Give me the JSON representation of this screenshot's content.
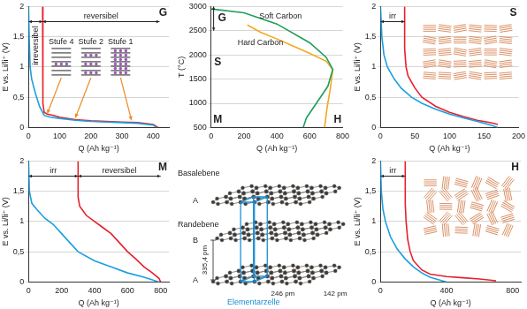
{
  "chart_data": [
    {
      "type": "line",
      "label": "G",
      "x_label": "Q (Ah kg⁻¹)",
      "y_label": "E vs. Li/li⁺ (V)",
      "xlim": [
        0,
        450
      ],
      "xticks": [
        0,
        100,
        200,
        300,
        400
      ],
      "ylim": [
        0,
        2
      ],
      "yticks": [
        0,
        {
          "value": 0.5,
          "label": "0,5"
        },
        1,
        {
          "value": 1.5,
          "label": "1,5"
        },
        2
      ],
      "grid": true,
      "series": [
        {
          "color": "#1a9fe0",
          "x": [
            0,
            2,
            5,
            10,
            20,
            35,
            50,
            70,
            100,
            150,
            200,
            250,
            300,
            350,
            400,
            410
          ],
          "values": [
            2.0,
            1.5,
            1.0,
            0.8,
            0.6,
            0.35,
            0.2,
            0.17,
            0.15,
            0.12,
            0.1,
            0.09,
            0.08,
            0.07,
            0.04,
            0.0
          ]
        },
        {
          "color": "#e8202a",
          "x": [
            45,
            45,
            47,
            50,
            60,
            80,
            100,
            150,
            200,
            250,
            300,
            350,
            400,
            415
          ],
          "values": [
            2.0,
            1.0,
            0.4,
            0.25,
            0.22,
            0.2,
            0.17,
            0.13,
            0.11,
            0.1,
            0.09,
            0.08,
            0.05,
            0.0
          ]
        }
      ],
      "annotations": [
        {
          "text": "irreversibel",
          "x": [
            0,
            45
          ],
          "y": 1.75
        },
        {
          "text": "reversibel",
          "x": [
            45,
            420
          ],
          "y": 1.75
        },
        {
          "text": "Stufe 4",
          "x": 105,
          "y": 1.35,
          "to": [
            60,
            0.2
          ]
        },
        {
          "text": "Stufe 2",
          "x": 200,
          "y": 1.35,
          "to": [
            150,
            0.13
          ]
        },
        {
          "text": "Stufe 1",
          "x": 295,
          "y": 1.35,
          "to": [
            330,
            0.09
          ]
        }
      ]
    },
    {
      "type": "line",
      "x_label": "Q (Ah kg⁻¹)",
      "y_label": "T (°C)",
      "xlim": [
        0,
        800
      ],
      "xticks": [
        0,
        200,
        400,
        600,
        800
      ],
      "ylim": [
        500,
        3000
      ],
      "yticks": [
        500,
        1000,
        1500,
        2000,
        2500,
        3000
      ],
      "grid": true,
      "series": [
        {
          "name": "Soft Carbon",
          "color": "#1f9e58",
          "x": [
            0,
            200,
            400,
            600,
            700,
            740,
            710,
            640,
            580,
            560
          ],
          "values": [
            2950,
            2870,
            2640,
            2250,
            1950,
            1700,
            1350,
            1000,
            700,
            500
          ]
        },
        {
          "name": "Hard Carbon",
          "color": "#f2a81d",
          "x": [
            220,
            300,
            400,
            500,
            600,
            700,
            740,
            725,
            705,
            690
          ],
          "values": [
            2620,
            2470,
            2330,
            2180,
            2030,
            1870,
            1700,
            1300,
            900,
            500
          ]
        }
      ],
      "annotations": [
        {
          "text": "G",
          "x": 15,
          "y": [
            2500,
            3000
          ]
        },
        {
          "text": "S",
          "x": 40,
          "y": 1850
        },
        {
          "text": "M",
          "x": 40,
          "y": 650
        },
        {
          "text": "H",
          "x": 770,
          "y": 650
        }
      ]
    },
    {
      "type": "line",
      "label": "S",
      "x_label": "Q (Ah kg⁻¹)",
      "y_label": "E vs. Li/li⁺ (V)",
      "xlim": [
        0,
        200
      ],
      "xticks": [
        0,
        50,
        100,
        150,
        200
      ],
      "ylim": [
        0,
        2
      ],
      "yticks": [
        0,
        {
          "value": 0.5,
          "label": "0,5"
        },
        1,
        {
          "value": 1.5,
          "label": "1,5"
        },
        2
      ],
      "grid": true,
      "series": [
        {
          "color": "#1a9fe0",
          "x": [
            0,
            2,
            5,
            10,
            20,
            30,
            45,
            60,
            80,
            100,
            120,
            140,
            160,
            170
          ],
          "values": [
            2.0,
            1.5,
            1.2,
            1.0,
            0.8,
            0.65,
            0.5,
            0.4,
            0.3,
            0.22,
            0.16,
            0.1,
            0.04,
            0.0
          ]
        },
        {
          "color": "#e8202a",
          "x": [
            35,
            35,
            37,
            40,
            50,
            60,
            80,
            100,
            120,
            140,
            160,
            170
          ],
          "values": [
            2.0,
            1.3,
            1.0,
            0.85,
            0.65,
            0.5,
            0.35,
            0.25,
            0.18,
            0.12,
            0.08,
            0.05
          ]
        }
      ],
      "annotations": [
        {
          "text": "irr",
          "x": [
            0,
            35
          ],
          "y": 1.75
        }
      ]
    },
    {
      "type": "line",
      "label": "M",
      "x_label": "Q (Ah kg⁻¹)",
      "y_label": "E vs. Li/li⁺ (V)",
      "xlim": [
        0,
        850
      ],
      "xticks": [
        0,
        200,
        400,
        600,
        800
      ],
      "ylim": [
        0,
        2
      ],
      "yticks": [
        0,
        {
          "value": 0.5,
          "label": "0,5"
        },
        1,
        {
          "value": 1.5,
          "label": "1,5"
        },
        2
      ],
      "grid": true,
      "series": [
        {
          "color": "#1a9fe0",
          "x": [
            0,
            5,
            20,
            50,
            100,
            150,
            200,
            300,
            400,
            500,
            600,
            700,
            790
          ],
          "values": [
            2.0,
            1.5,
            1.3,
            1.2,
            1.05,
            0.95,
            0.8,
            0.5,
            0.35,
            0.25,
            0.15,
            0.08,
            0.0
          ]
        },
        {
          "color": "#e8202a",
          "x": [
            300,
            300,
            310,
            350,
            400,
            450,
            500,
            550,
            600,
            650,
            700,
            750,
            790,
            800
          ],
          "values": [
            2.0,
            1.4,
            1.25,
            1.1,
            1.0,
            0.9,
            0.8,
            0.65,
            0.5,
            0.38,
            0.25,
            0.15,
            0.06,
            0.0
          ]
        }
      ],
      "annotations": [
        {
          "text": "irr",
          "x": [
            0,
            300
          ],
          "y": 1.75
        },
        {
          "text": "reversibel",
          "x": [
            300,
            800
          ],
          "y": 1.75
        }
      ]
    },
    {
      "type": "line",
      "label": "H",
      "x_label": "Q (Ah kg⁻¹)",
      "y_label": "E vs. Li/li⁺ (V)",
      "xlim": [
        0,
        850
      ],
      "xticks": [
        0,
        400,
        800
      ],
      "ylim": [
        0,
        2
      ],
      "yticks": [
        0,
        {
          "value": 0.5,
          "label": "0,5"
        },
        1,
        {
          "value": 1.5,
          "label": "1,5"
        },
        2
      ],
      "grid": true,
      "series": [
        {
          "color": "#1a9fe0",
          "x": [
            0,
            5,
            15,
            30,
            60,
            100,
            150,
            200,
            250,
            300,
            350,
            400
          ],
          "values": [
            2.0,
            1.5,
            1.2,
            1.0,
            0.75,
            0.55,
            0.38,
            0.25,
            0.15,
            0.08,
            0.04,
            0.0
          ]
        },
        {
          "color": "#e8202a",
          "x": [
            150,
            150,
            155,
            165,
            180,
            200,
            250,
            300,
            400,
            500,
            600,
            700
          ],
          "values": [
            2.0,
            1.3,
            1.0,
            0.7,
            0.5,
            0.35,
            0.2,
            0.13,
            0.09,
            0.07,
            0.05,
            0.02
          ]
        }
      ],
      "annotations": [
        {
          "text": "irr",
          "x": [
            0,
            150
          ],
          "y": 1.75
        }
      ]
    }
  ],
  "diagram": {
    "basal_plane": "Basalebene",
    "edge_plane": "Randebene",
    "layers": [
      "A",
      "B",
      "A"
    ],
    "layer_spacing": "335,4 pm",
    "unit_cell": "Elementarzelle",
    "lattice_constant": "246 pm",
    "bond_length": "142 pm"
  }
}
